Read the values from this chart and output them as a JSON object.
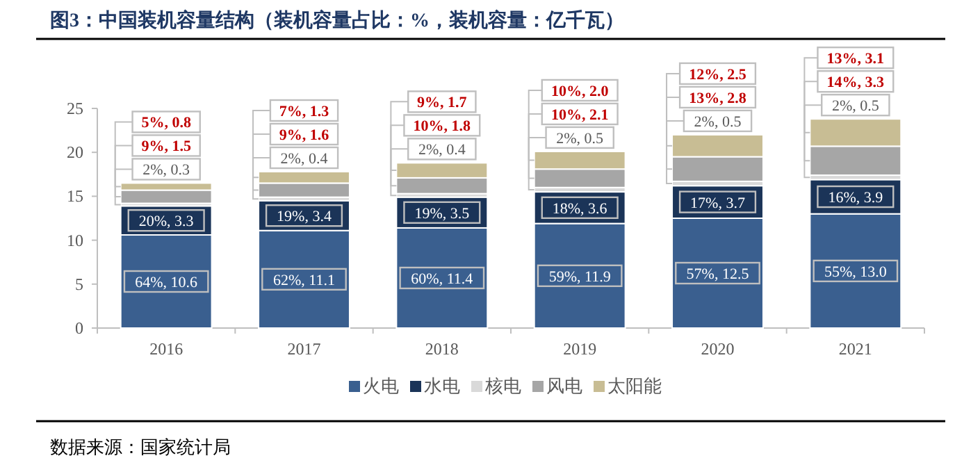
{
  "chart_data": {
    "type": "bar",
    "stacked": true,
    "title": "图3：中国装机容量结构（装机容量占比：%，装机容量：亿千瓦）",
    "categories": [
      "2016",
      "2017",
      "2018",
      "2019",
      "2020",
      "2021"
    ],
    "ylim": [
      0,
      25
    ],
    "yticks": [
      0,
      5,
      10,
      15,
      20,
      25
    ],
    "grid": false,
    "legend": "bottom",
    "series": [
      {
        "name": "火电",
        "color": "#3a5f8f",
        "values": [
          10.6,
          11.1,
          11.4,
          11.9,
          12.5,
          13.0
        ],
        "value_labels": [
          "64%, 10.6",
          "62%, 11.1",
          "60%, 11.4",
          "59%, 11.9",
          "57%, 12.5",
          "55%, 13.0"
        ]
      },
      {
        "name": "水电",
        "color": "#1b3458",
        "values": [
          3.3,
          3.4,
          3.5,
          3.6,
          3.7,
          3.9
        ],
        "value_labels": [
          "20%, 3.3",
          "19%, 3.4",
          "19%, 3.5",
          "18%, 3.6",
          "17%, 3.7",
          "16%, 3.9"
        ]
      },
      {
        "name": "核电",
        "color": "#d9d9d9",
        "values": [
          0.3,
          0.4,
          0.4,
          0.5,
          0.5,
          0.5
        ],
        "value_labels": [
          "2%, 0.3",
          "2%, 0.4",
          "2%, 0.4",
          "2%, 0.5",
          "2%, 0.5",
          "2%, 0.5"
        ]
      },
      {
        "name": "风电",
        "color": "#a6a6a6",
        "values": [
          1.5,
          1.6,
          1.8,
          2.1,
          2.8,
          3.3
        ],
        "value_labels": [
          "9%, 1.5",
          "9%, 1.6",
          "10%, 1.8",
          "10%, 2.1",
          "13%, 2.8",
          "14%, 3.3"
        ]
      },
      {
        "name": "太阳能",
        "color": "#c8bd94",
        "values": [
          0.8,
          1.3,
          1.7,
          2.0,
          2.5,
          3.1
        ],
        "value_labels": [
          "5%, 0.8",
          "7%, 1.3",
          "9%, 1.7",
          "10%, 2.0",
          "12%, 2.5",
          "13%, 3.1"
        ]
      }
    ],
    "annotations": [
      "数据来源：国家统计局"
    ]
  }
}
